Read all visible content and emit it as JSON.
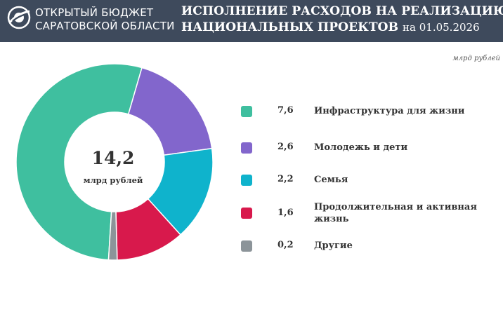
{
  "header": {
    "logo_text": "ОТКРЫТЫЙ БЮДЖЕТ\nСАРАТОВСКОЙ ОБЛАСТИ",
    "title_line1": "ИСПОЛНЕНИЕ РАСХОДОВ НА РЕАЛИЗАЦИЮ",
    "title_line2": "НАЦИОНАЛЬНЫХ ПРОЕКТОВ",
    "title_date": "на 01.05.2026",
    "logo_icon": "orbit-logo-icon"
  },
  "unit_label": "млрд рублей",
  "center": {
    "total": "14,2",
    "unit": "млрд рублей"
  },
  "legend": [
    {
      "value": "7,6",
      "label": "Инфраструктура для жизни",
      "color": "#3fbf9f"
    },
    {
      "value": "2,6",
      "label": "Молодежь и дети",
      "color": "#8266cc"
    },
    {
      "value": "2,2",
      "label": "Семья",
      "color": "#0fb3cc"
    },
    {
      "value": "1,6",
      "label": "Продолжительная  и активная жизнь",
      "color": "#d8194c"
    },
    {
      "value": "0,2",
      "label": "Другие",
      "color": "#8c9499"
    }
  ],
  "chart_data": {
    "type": "pie",
    "total": 14.2,
    "categories": [
      "Инфраструктура для жизни",
      "Молодежь и дети",
      "Семья",
      "Продолжительная  и активная жизнь",
      "Другие"
    ],
    "values": [
      7.6,
      2.6,
      2.2,
      1.6,
      0.2
    ],
    "colors": [
      "#3fbf9f",
      "#8266cc",
      "#0fb3cc",
      "#d8194c",
      "#8c9499"
    ],
    "legend_position": "right"
  }
}
